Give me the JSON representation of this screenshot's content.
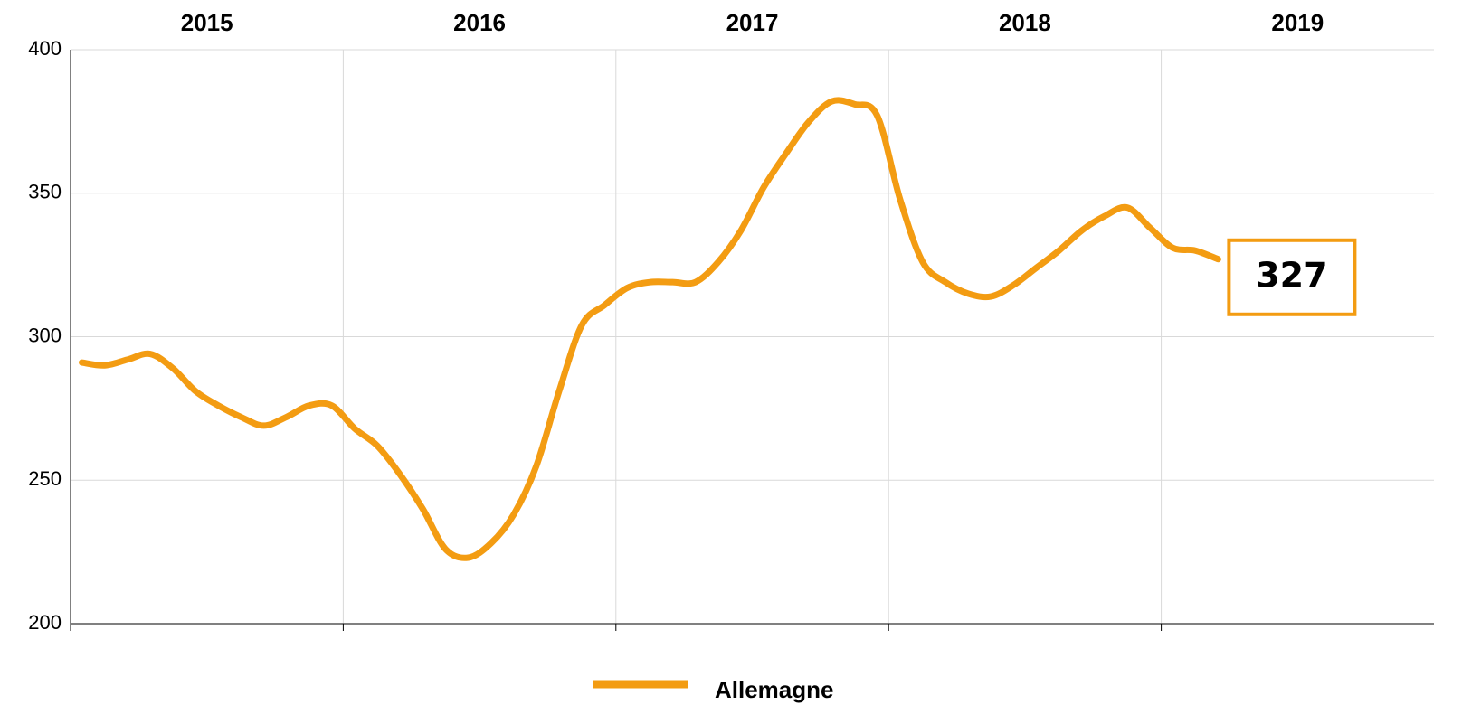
{
  "chart_data": {
    "type": "line",
    "categories": [
      "2015",
      null,
      null,
      null,
      null,
      null,
      null,
      null,
      null,
      null,
      null,
      null,
      "2016",
      null,
      null,
      null,
      null,
      null,
      null,
      null,
      null,
      null,
      null,
      null,
      "2017",
      null,
      null,
      null,
      null,
      null,
      null,
      null,
      null,
      null,
      null,
      null,
      "2018",
      null,
      null,
      null,
      null,
      null,
      null,
      null,
      null,
      null,
      null,
      null,
      "2019",
      null,
      null,
      null,
      null,
      null,
      null,
      null,
      null,
      null,
      null,
      null
    ],
    "series": [
      {
        "name": "Allemagne",
        "color": "#f39c12",
        "values": [
          291,
          290,
          292,
          294,
          289,
          281,
          276,
          272,
          269,
          272,
          276,
          276,
          268,
          262,
          252,
          240,
          226,
          223,
          228,
          238,
          255,
          281,
          304,
          311,
          317,
          319,
          319,
          319,
          326,
          337,
          352,
          364,
          375,
          382,
          381,
          377,
          348,
          326,
          319,
          315,
          314,
          318,
          324,
          330,
          337,
          342,
          345,
          338,
          331,
          330,
          327,
          null,
          null,
          null,
          null,
          null,
          null,
          null,
          null,
          null
        ]
      }
    ],
    "ylim": [
      200,
      400
    ],
    "yticks": [
      200,
      250,
      300,
      350,
      400
    ],
    "grid": true,
    "legend": "bottom"
  }
}
